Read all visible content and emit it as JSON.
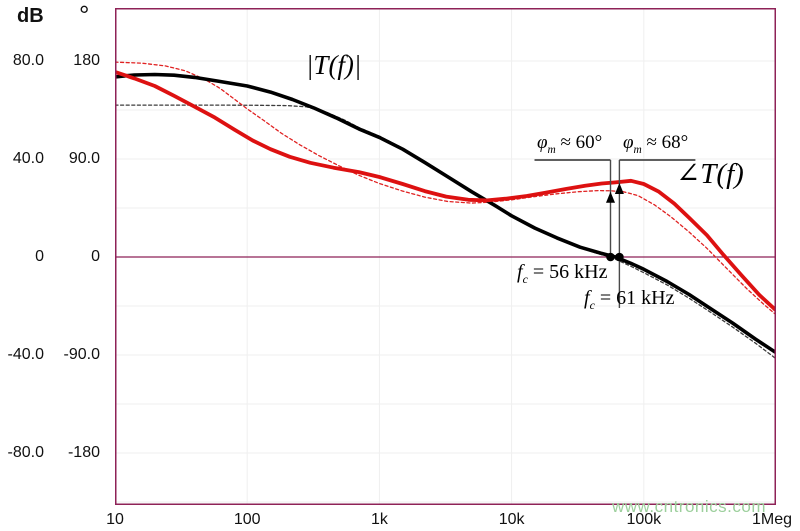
{
  "header": {
    "db_unit": "dB",
    "deg_unit": "°"
  },
  "watermark": "www.cntronics.com",
  "colors": {
    "frame": "#8e2257",
    "grid": "#efefef",
    "annotation_line": "#4a4a4a",
    "marker": "#000000",
    "watermark": "#9ccf9c",
    "text": "#111111"
  },
  "chart_data": {
    "type": "line",
    "x_axis": {
      "scale": "log",
      "unit": "Hz",
      "min": 10,
      "max": 1000000,
      "ticks": [
        {
          "label": "10",
          "hz": 10
        },
        {
          "label": "100",
          "hz": 100
        },
        {
          "label": "1k",
          "hz": 1000
        },
        {
          "label": "10k",
          "hz": 10000
        },
        {
          "label": "100k",
          "hz": 100000
        },
        {
          "label": "1Meg",
          "hz": 1000000
        }
      ]
    },
    "y_axis_db": {
      "unit": "dB",
      "range": [
        -101,
        101
      ],
      "ticks": [
        {
          "label": "80.0",
          "value": 80
        },
        {
          "label": "40.0",
          "value": 40
        },
        {
          "label": "0",
          "value": 0
        },
        {
          "label": "-40.0",
          "value": -40
        },
        {
          "label": "-80.0",
          "value": -80
        }
      ]
    },
    "y_axis_deg": {
      "unit": "°",
      "range": [
        -225,
        225
      ],
      "ticks": [
        {
          "label": "180",
          "value": 180
        },
        {
          "label": "90.0",
          "value": 90
        },
        {
          "label": "0",
          "value": 0
        },
        {
          "label": "-90.0",
          "value": -90
        },
        {
          "label": "-180",
          "value": -180
        }
      ]
    },
    "grid": {
      "h_db": [
        80,
        60,
        40,
        20,
        -20,
        -40,
        -60,
        -80,
        -100
      ],
      "v_hz": [
        100,
        1000,
        10000,
        100000
      ]
    },
    "labels": {
      "gain_title": "|T(f)|",
      "phase_title": "∠T(f)"
    },
    "series": [
      {
        "name": "gain-measured",
        "unit": "dB",
        "style": "solid",
        "color": "#000000",
        "width": 3.6,
        "points": [
          [
            10,
            73.5
          ],
          [
            14,
            74.3
          ],
          [
            20,
            74.5
          ],
          [
            28,
            74.2
          ],
          [
            40,
            73.3
          ],
          [
            60,
            71.8
          ],
          [
            100,
            69.8
          ],
          [
            150,
            67.3
          ],
          [
            220,
            64.3
          ],
          [
            320,
            60.8
          ],
          [
            470,
            56.8
          ],
          [
            700,
            52.3
          ],
          [
            1000,
            48.8
          ],
          [
            1500,
            44
          ],
          [
            2200,
            38.6
          ],
          [
            3300,
            32.7
          ],
          [
            5000,
            26.6
          ],
          [
            7500,
            21
          ],
          [
            10000,
            16.8
          ],
          [
            15000,
            11.8
          ],
          [
            22000,
            7.8
          ],
          [
            33000,
            4
          ],
          [
            47000,
            1.6
          ],
          [
            61000,
            0
          ],
          [
            80000,
            -2.6
          ],
          [
            100000,
            -5
          ],
          [
            150000,
            -10
          ],
          [
            220000,
            -15.3
          ],
          [
            330000,
            -21.5
          ],
          [
            470000,
            -27
          ],
          [
            700000,
            -33.5
          ],
          [
            1000000,
            -39
          ]
        ]
      },
      {
        "name": "gain-model",
        "unit": "dB",
        "style": "dashed",
        "color": "#3c3c3c",
        "width": 1.3,
        "points": [
          [
            10,
            62
          ],
          [
            60,
            62
          ],
          [
            120,
            61.9
          ],
          [
            200,
            61.8
          ],
          [
            280,
            61.3
          ],
          [
            400,
            59
          ],
          [
            550,
            55.8
          ],
          [
            700,
            52.8
          ],
          [
            1000,
            49.3
          ],
          [
            1500,
            44.4
          ],
          [
            2200,
            39
          ],
          [
            3300,
            33.1
          ],
          [
            5000,
            27
          ],
          [
            7500,
            21.3
          ],
          [
            10000,
            17
          ],
          [
            15000,
            11.9
          ],
          [
            22000,
            7.7
          ],
          [
            33000,
            3.7
          ],
          [
            47000,
            1.1
          ],
          [
            56000,
            0
          ],
          [
            80000,
            -3.8
          ],
          [
            100000,
            -6.4
          ],
          [
            150000,
            -11.4
          ],
          [
            220000,
            -16.8
          ],
          [
            330000,
            -23
          ],
          [
            470000,
            -28.6
          ],
          [
            700000,
            -35.2
          ],
          [
            1000000,
            -41.5
          ]
        ]
      },
      {
        "name": "phase-measured",
        "unit": "deg",
        "style": "solid",
        "color": "#dd1111",
        "width": 3.8,
        "points": [
          [
            10,
            170
          ],
          [
            14,
            164
          ],
          [
            20,
            157
          ],
          [
            28,
            148
          ],
          [
            40,
            138
          ],
          [
            57,
            128
          ],
          [
            80,
            117
          ],
          [
            110,
            107
          ],
          [
            150,
            99
          ],
          [
            210,
            92
          ],
          [
            300,
            86.5
          ],
          [
            450,
            82
          ],
          [
            700,
            78
          ],
          [
            1000,
            73.5
          ],
          [
            1500,
            67
          ],
          [
            2200,
            60.5
          ],
          [
            3200,
            55.5
          ],
          [
            4700,
            52.5
          ],
          [
            6500,
            52
          ],
          [
            9000,
            53.5
          ],
          [
            13000,
            56
          ],
          [
            18000,
            59
          ],
          [
            26000,
            62.5
          ],
          [
            36000,
            65.5
          ],
          [
            48000,
            67.5
          ],
          [
            61000,
            68.5
          ],
          [
            80000,
            70
          ],
          [
            100000,
            67
          ],
          [
            130000,
            60
          ],
          [
            170000,
            49
          ],
          [
            220000,
            36
          ],
          [
            300000,
            20
          ],
          [
            400000,
            2
          ],
          [
            550000,
            -17
          ],
          [
            750000,
            -35
          ],
          [
            1000000,
            -49
          ]
        ]
      },
      {
        "name": "phase-model",
        "unit": "deg",
        "style": "dashed",
        "color": "#e02222",
        "width": 1.3,
        "points": [
          [
            10,
            179
          ],
          [
            16,
            178
          ],
          [
            24,
            175.5
          ],
          [
            34,
            171
          ],
          [
            48,
            163
          ],
          [
            62,
            155
          ],
          [
            78,
            146
          ],
          [
            100,
            136
          ],
          [
            135,
            125
          ],
          [
            180,
            114
          ],
          [
            250,
            103
          ],
          [
            350,
            93
          ],
          [
            500,
            83.5
          ],
          [
            700,
            75
          ],
          [
            1000,
            67.5
          ],
          [
            1500,
            60.5
          ],
          [
            2200,
            55
          ],
          [
            3300,
            51
          ],
          [
            5000,
            49.5
          ],
          [
            7000,
            50.5
          ],
          [
            10000,
            52.5
          ],
          [
            15000,
            55.5
          ],
          [
            22000,
            58
          ],
          [
            32000,
            60
          ],
          [
            45000,
            61
          ],
          [
            56000,
            60.8
          ],
          [
            70000,
            60
          ],
          [
            90000,
            56.5
          ],
          [
            120000,
            48
          ],
          [
            160000,
            37
          ],
          [
            220000,
            23
          ],
          [
            300000,
            8
          ],
          [
            420000,
            -10
          ],
          [
            600000,
            -29
          ],
          [
            800000,
            -43
          ],
          [
            1000000,
            -53
          ]
        ]
      }
    ],
    "annotations": {
      "pm1": {
        "sym": "φ",
        "sub": "m",
        "text": "≈ 60°",
        "deg": 60,
        "at_hz": 56000
      },
      "pm2": {
        "sym": "φ",
        "sub": "m",
        "text": "≈ 68°",
        "deg": 68,
        "at_hz": 61000
      },
      "fc1": {
        "sym": "f",
        "sub": "c",
        "text": "= 56 kHz",
        "hz": 56000
      },
      "fc2": {
        "sym": "f",
        "sub": "c",
        "text": "= 61 kHz",
        "hz": 61000
      }
    }
  }
}
